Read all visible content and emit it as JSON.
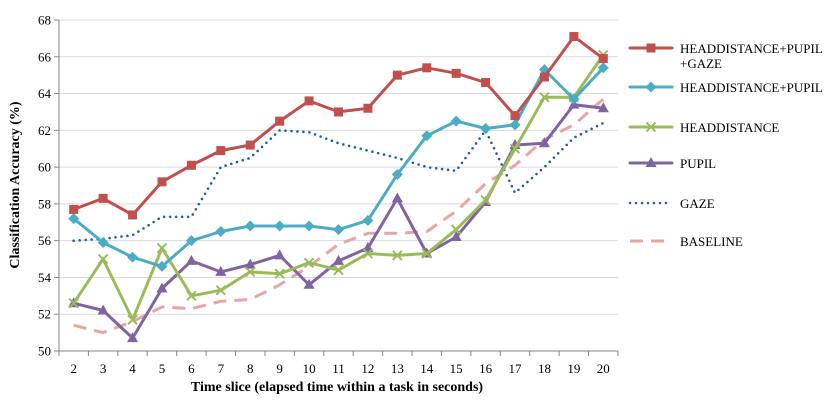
{
  "chart_data": {
    "type": "line",
    "xlabel": "Time slice (elapsed time within a task in seconds)",
    "ylabel": "Classification Accuracy (%)",
    "ylim": [
      50,
      68
    ],
    "yticks": [
      50,
      52,
      54,
      56,
      58,
      60,
      62,
      64,
      66,
      68
    ],
    "x": [
      2,
      3,
      4,
      5,
      6,
      7,
      8,
      9,
      10,
      11,
      12,
      13,
      14,
      15,
      16,
      17,
      18,
      19,
      20
    ],
    "grid": "horizontal",
    "legend_position": "right",
    "series": [
      {
        "name": "HEADDISTANCE+PUPIL +GAZE",
        "legend_lines": [
          "HEADDISTANCE+PUPIL",
          "+GAZE"
        ],
        "color": "#C0504D",
        "marker": "square",
        "dash": "solid",
        "values": [
          57.7,
          58.3,
          57.4,
          59.2,
          60.1,
          60.9,
          61.2,
          62.5,
          63.6,
          63.0,
          63.2,
          65.0,
          65.4,
          65.1,
          64.6,
          62.8,
          64.9,
          67.1,
          65.9
        ]
      },
      {
        "name": "HEADDISTANCE+PUPIL",
        "legend_lines": [
          "HEADDISTANCE+PUPIL"
        ],
        "color": "#4BACC6",
        "marker": "diamond",
        "dash": "solid",
        "values": [
          57.2,
          55.9,
          55.1,
          54.6,
          56.0,
          56.5,
          56.8,
          56.8,
          56.8,
          56.6,
          57.1,
          59.6,
          61.7,
          62.5,
          62.1,
          62.3,
          65.3,
          63.7,
          65.4
        ]
      },
      {
        "name": "HEADDISTANCE",
        "legend_lines": [
          "HEADDISTANCE"
        ],
        "color": "#9BBB59",
        "marker": "x",
        "dash": "solid",
        "values": [
          52.6,
          55.0,
          51.7,
          55.6,
          53.0,
          53.3,
          54.3,
          54.2,
          54.8,
          54.4,
          55.3,
          55.2,
          55.3,
          56.6,
          58.2,
          61.0,
          63.8,
          63.8,
          66.1
        ]
      },
      {
        "name": "PUPIL",
        "legend_lines": [
          "PUPIL"
        ],
        "color": "#8064A2",
        "marker": "triangle",
        "dash": "solid",
        "values": [
          52.6,
          52.2,
          50.7,
          53.4,
          54.9,
          54.3,
          54.7,
          55.2,
          53.6,
          54.9,
          55.6,
          58.3,
          55.3,
          56.2,
          58.1,
          61.2,
          61.3,
          63.4,
          63.2
        ]
      },
      {
        "name": "GAZE",
        "legend_lines": [
          "GAZE"
        ],
        "color": "#1F5FA6",
        "marker": "none",
        "dash": "dotted",
        "values": [
          56.0,
          56.1,
          56.3,
          57.3,
          57.3,
          60.0,
          60.5,
          62.0,
          61.9,
          61.3,
          60.9,
          60.5,
          60.0,
          59.8,
          62.0,
          58.6,
          60.0,
          61.6,
          62.4
        ]
      },
      {
        "name": "BASELINE",
        "legend_lines": [
          "BASELINE"
        ],
        "color": "#E6A6A4",
        "marker": "none",
        "dash": "dashed",
        "values": [
          51.4,
          51.0,
          51.6,
          52.4,
          52.3,
          52.7,
          52.8,
          53.6,
          54.6,
          55.8,
          56.4,
          56.4,
          56.5,
          57.6,
          59.1,
          60.1,
          61.5,
          62.3,
          63.7
        ]
      }
    ]
  }
}
